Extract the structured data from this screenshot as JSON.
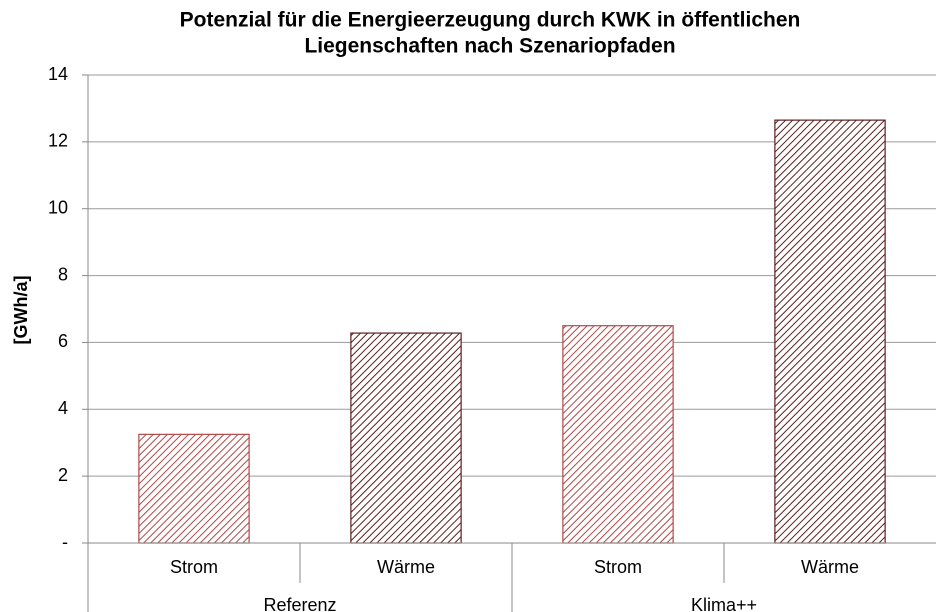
{
  "chart_data": {
    "type": "bar",
    "title": [
      "Potenzial für die Energieerzeugung durch KWK in öffentlichen",
      "Liegenschaften nach Szenariopfaden"
    ],
    "y_label": "[GWh/a]",
    "categories": [
      "Strom",
      "Wärme",
      "Strom",
      "Wärme"
    ],
    "groups": [
      "Referenz",
      "Klima++"
    ],
    "values": [
      3.25,
      6.28,
      6.5,
      12.65
    ],
    "colors": [
      "#b04848",
      "#5c1f1f",
      "#b04848",
      "#5c1f1f"
    ],
    "ylim": [
      0,
      14
    ],
    "yticks": [
      {
        "value": 0,
        "label": "-"
      },
      2,
      4,
      6,
      8,
      10,
      12,
      14
    ],
    "grid": true
  }
}
